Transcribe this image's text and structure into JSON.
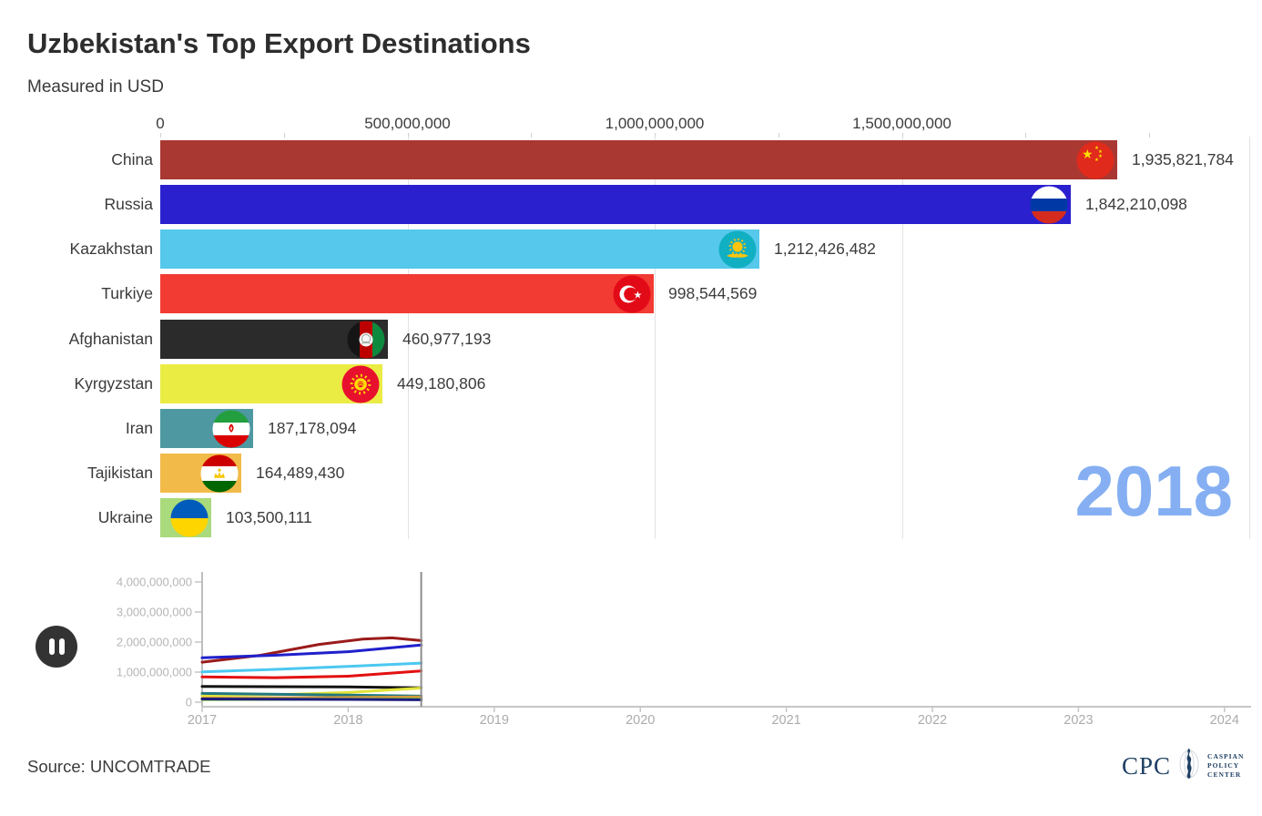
{
  "header": {
    "title": "Uzbekistan's Top Export Destinations",
    "subtitle": "Measured in USD"
  },
  "year_badge": "2018",
  "controls": {
    "pause_icon": "pause-icon"
  },
  "footer": {
    "source": "Source: UNCOMTRADE"
  },
  "logo": {
    "abbr": "CPC",
    "org_lines": [
      "CASPIAN",
      "POLICY",
      "CENTER"
    ],
    "color": "#1f4064"
  },
  "chart_data": [
    {
      "type": "bar",
      "orientation": "horizontal",
      "title": "Uzbekistan's Top Export Destinations",
      "subtitle": "Measured in USD",
      "year": "2018",
      "xlim": [
        0,
        2200000000
      ],
      "grid": true,
      "x_ticks": [
        {
          "label": "0",
          "value": 0
        },
        {
          "label": "500,000,000",
          "value": 500000000
        },
        {
          "label": "1,000,000,000",
          "value": 1000000000
        },
        {
          "label": "1,500,000,000",
          "value": 1500000000
        }
      ],
      "bars": [
        {
          "country": "China",
          "value": 1935821784,
          "value_label": "1,935,821,784",
          "color": "#a93833",
          "flag": "china-flag-icon"
        },
        {
          "country": "Russia",
          "value": 1842210098,
          "value_label": "1,842,210,098",
          "color": "#2b20ce",
          "flag": "russia-flag-icon"
        },
        {
          "country": "Kazakhstan",
          "value": 1212426482,
          "value_label": "1,212,426,482",
          "color": "#55c8eb",
          "flag": "kazakhstan-flag-icon"
        },
        {
          "country": "Turkiye",
          "value": 998544569,
          "value_label": "998,544,569",
          "color": "#f23b33",
          "flag": "turkiye-flag-icon"
        },
        {
          "country": "Afghanistan",
          "value": 460977193,
          "value_label": "460,977,193",
          "color": "#2b2b2b",
          "flag": "afghanistan-flag-icon"
        },
        {
          "country": "Kyrgyzstan",
          "value": 449180806,
          "value_label": "449,180,806",
          "color": "#eaec43",
          "flag": "kyrgyzstan-flag-icon"
        },
        {
          "country": "Iran",
          "value": 187178094,
          "value_label": "187,178,094",
          "color": "#4e98a1",
          "flag": "iran-flag-icon"
        },
        {
          "country": "Tajikistan",
          "value": 164489430,
          "value_label": "164,489,430",
          "color": "#f2ba49",
          "flag": "tajikistan-flag-icon"
        },
        {
          "country": "Ukraine",
          "value": 103500111,
          "value_label": "103,500,111",
          "color": "#a9da7c",
          "flag": "ukraine-flag-icon"
        }
      ]
    },
    {
      "type": "line",
      "x_range": [
        2017,
        2024
      ],
      "x_ticks": [
        "2017",
        "2018",
        "2019",
        "2020",
        "2021",
        "2022",
        "2023",
        "2024"
      ],
      "ylim": [
        0,
        4400000000
      ],
      "y_ticks": [
        {
          "label": "0",
          "value": 0
        },
        {
          "label": "1,000,000,000",
          "value": 1000000000
        },
        {
          "label": "2,000,000,000",
          "value": 2000000000
        },
        {
          "label": "3,000,000,000",
          "value": 3000000000
        },
        {
          "label": "4,000,000,000",
          "value": 4000000000
        }
      ],
      "current_year": 2018.5,
      "legend": "none",
      "series": [
        {
          "name": "China",
          "color": "#9a1b1b",
          "x": [
            2017,
            2017.4,
            2017.8,
            2018.1,
            2018.3,
            2018.5
          ],
          "y": [
            1330000000,
            1560000000,
            1920000000,
            2100000000,
            2140000000,
            2050000000
          ]
        },
        {
          "name": "Russia",
          "color": "#2020cc",
          "x": [
            2017,
            2017.5,
            2018,
            2018.5
          ],
          "y": [
            1480000000,
            1560000000,
            1680000000,
            1900000000
          ]
        },
        {
          "name": "Kazakhstan",
          "color": "#4cc8f0",
          "x": [
            2017,
            2017.5,
            2018,
            2018.5
          ],
          "y": [
            1010000000,
            1090000000,
            1190000000,
            1300000000
          ]
        },
        {
          "name": "Turkiye",
          "color": "#e31010",
          "x": [
            2017,
            2017.5,
            2018,
            2018.5
          ],
          "y": [
            840000000,
            815000000,
            865000000,
            1040000000
          ]
        },
        {
          "name": "Afghanistan",
          "color": "#121212",
          "x": [
            2017,
            2018,
            2018.5
          ],
          "y": [
            520000000,
            505000000,
            480000000
          ]
        },
        {
          "name": "Kyrgyzstan",
          "color": "#e2e439",
          "x": [
            2017,
            2017.6,
            2018,
            2018.5
          ],
          "y": [
            225000000,
            260000000,
            320000000,
            470000000
          ]
        },
        {
          "name": "Iran",
          "color": "#23787f",
          "x": [
            2017,
            2018,
            2018.5
          ],
          "y": [
            290000000,
            235000000,
            200000000
          ]
        },
        {
          "name": "Tajikistan",
          "color": "#d49a3b",
          "x": [
            2017,
            2018,
            2018.5
          ],
          "y": [
            135000000,
            155000000,
            175000000
          ]
        },
        {
          "name": "Ukraine",
          "color": "#8cc63f",
          "x": [
            2017,
            2018,
            2018.5
          ],
          "y": [
            85000000,
            100000000,
            105000000
          ]
        },
        {
          "name": "(unlabeled)",
          "color": "#1c1c7e",
          "x": [
            2017,
            2018,
            2018.5
          ],
          "y": [
            105000000,
            90000000,
            80000000
          ]
        }
      ]
    }
  ]
}
